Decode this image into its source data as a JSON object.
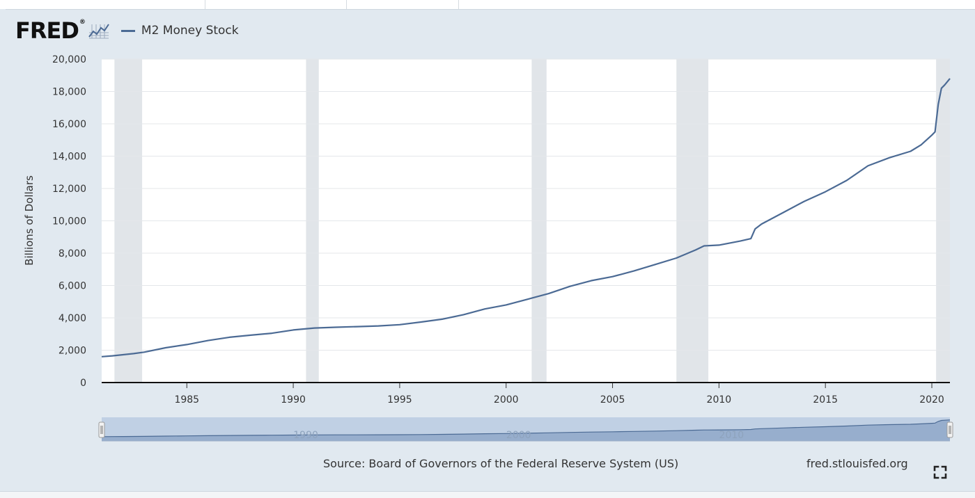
{
  "header": {
    "logo_text": "FRED",
    "logo_mark": "®",
    "logo_icon": "line-graph-icon",
    "series_title": "M2 Money Stock",
    "series_color": "#4b6a94"
  },
  "footer": {
    "source": "Source: Board of Governors of the Federal Reserve System (US)",
    "site": "fred.stlouisfed.org",
    "fullscreen_icon": "fullscreen-icon"
  },
  "chart_data": {
    "type": "line",
    "title": "",
    "xlabel": "",
    "ylabel": "Billions of Dollars",
    "xlim": [
      1981.0,
      2020.85
    ],
    "ylim": [
      0,
      20000
    ],
    "y_ticks": [
      0,
      2000,
      4000,
      6000,
      8000,
      10000,
      12000,
      14000,
      16000,
      18000,
      20000
    ],
    "y_tick_labels": [
      "0",
      "2,000",
      "4,000",
      "6,000",
      "8,000",
      "10,000",
      "12,000",
      "14,000",
      "16,000",
      "18,000",
      "20,000"
    ],
    "x_ticks": [
      1985,
      1990,
      1995,
      2000,
      2005,
      2010,
      2015,
      2020
    ],
    "x_tick_labels": [
      "1985",
      "1990",
      "1995",
      "2000",
      "2005",
      "2010",
      "2015",
      "2020"
    ],
    "grid": true,
    "line_color": "#4b6a94",
    "recession_color": "#e1e5e9",
    "recessions": [
      [
        1981.6,
        1982.9
      ],
      [
        1990.6,
        1991.2
      ],
      [
        2001.2,
        2001.9
      ],
      [
        2008.0,
        2009.5
      ],
      [
        2020.2,
        2020.85
      ]
    ],
    "series": [
      {
        "name": "M2 Money Stock",
        "x": [
          1981.0,
          1981.5,
          1982.0,
          1982.5,
          1983.0,
          1984.0,
          1985.0,
          1986.0,
          1987.0,
          1988.0,
          1989.0,
          1990.0,
          1991.0,
          1992.0,
          1993.0,
          1994.0,
          1995.0,
          1996.0,
          1997.0,
          1998.0,
          1999.0,
          2000.0,
          2001.0,
          2002.0,
          2003.0,
          2004.0,
          2005.0,
          2006.0,
          2007.0,
          2008.0,
          2008.9,
          2009.3,
          2010.0,
          2011.0,
          2011.5,
          2011.7,
          2012.0,
          2013.0,
          2014.0,
          2015.0,
          2016.0,
          2017.0,
          2018.0,
          2019.0,
          2019.5,
          2020.0,
          2020.15,
          2020.3,
          2020.45,
          2020.6,
          2020.85
        ],
        "values": [
          1600,
          1650,
          1720,
          1790,
          1880,
          2150,
          2350,
          2600,
          2800,
          2930,
          3050,
          3250,
          3370,
          3420,
          3460,
          3500,
          3580,
          3740,
          3920,
          4200,
          4550,
          4800,
          5150,
          5500,
          5950,
          6300,
          6550,
          6900,
          7300,
          7700,
          8200,
          8450,
          8500,
          8750,
          8900,
          9500,
          9800,
          10500,
          11200,
          11800,
          12500,
          13400,
          13900,
          14300,
          14700,
          15300,
          15500,
          17200,
          18200,
          18400,
          18800
        ]
      }
    ],
    "navigator": {
      "x_tick_labels": [
        "1990",
        "2000",
        "2010"
      ]
    }
  }
}
